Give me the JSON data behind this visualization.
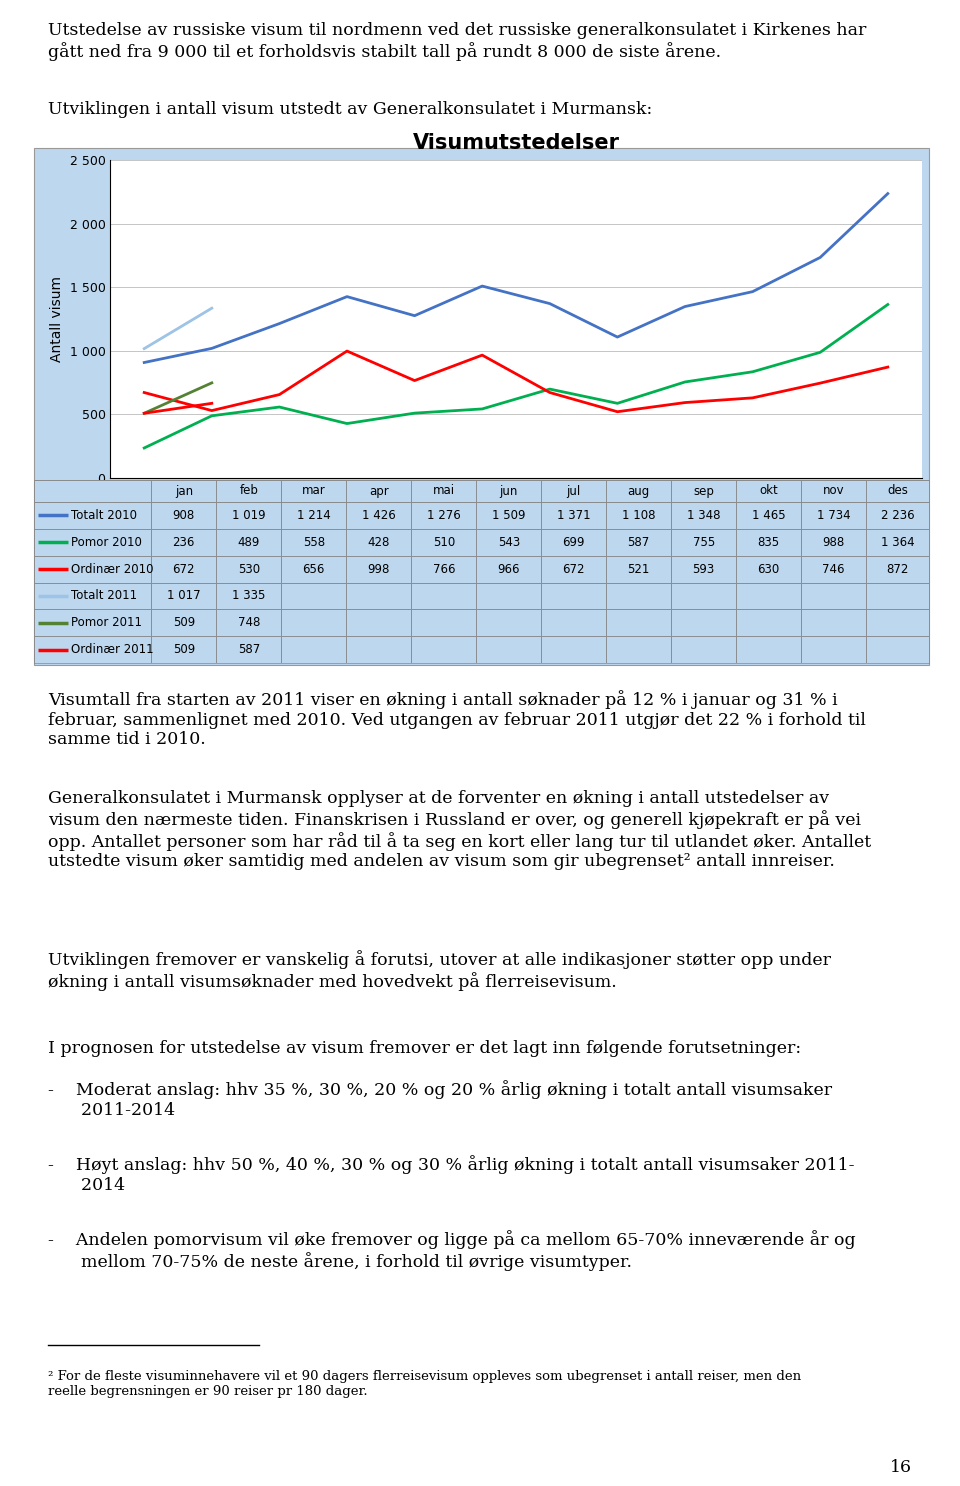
{
  "title": "Visumutstedelser",
  "ylabel": "Antall visum",
  "months": [
    "jan",
    "feb",
    "mar",
    "apr",
    "mai",
    "jun",
    "jul",
    "aug",
    "sep",
    "okt",
    "nov",
    "des"
  ],
  "series_order": [
    "Totalt 2010",
    "Pomor 2010",
    "Ordinær 2010",
    "Totalt 2011",
    "Pomor 2011",
    "Ordinær 2011"
  ],
  "series": {
    "Totalt 2010": {
      "data": [
        908,
        1019,
        1214,
        1426,
        1276,
        1509,
        1371,
        1108,
        1348,
        1465,
        1734,
        2236
      ],
      "color": "#4472C4",
      "linewidth": 2.0,
      "dashes": false
    },
    "Pomor 2010": {
      "data": [
        236,
        489,
        558,
        428,
        510,
        543,
        699,
        587,
        755,
        835,
        988,
        1364
      ],
      "color": "#00B050",
      "linewidth": 2.0,
      "dashes": false
    },
    "Ordinær 2010": {
      "data": [
        672,
        530,
        656,
        998,
        766,
        966,
        672,
        521,
        593,
        630,
        746,
        872
      ],
      "color": "#FF0000",
      "linewidth": 2.0,
      "dashes": false
    },
    "Totalt 2011": {
      "data": [
        1017,
        1335,
        null,
        null,
        null,
        null,
        null,
        null,
        null,
        null,
        null,
        null
      ],
      "color": "#9DC3E6",
      "linewidth": 2.0,
      "dashes": false
    },
    "Pomor 2011": {
      "data": [
        509,
        748,
        null,
        null,
        null,
        null,
        null,
        null,
        null,
        null,
        null,
        null
      ],
      "color": "#548235",
      "linewidth": 2.0,
      "dashes": false
    },
    "Ordinær 2011": {
      "data": [
        509,
        587,
        null,
        null,
        null,
        null,
        null,
        null,
        null,
        null,
        null,
        null
      ],
      "color": "#FF0000",
      "linewidth": 2.0,
      "dashes": false
    }
  },
  "ylim": [
    0,
    2500
  ],
  "yticks": [
    0,
    500,
    1000,
    1500,
    2000,
    2500
  ],
  "chart_bg": "#BDD7EE",
  "plot_bg": "#FFFFFF",
  "table_rows": [
    [
      "Totalt 2010",
      "908",
      "1 019",
      "1 214",
      "1 426",
      "1 276",
      "1 509",
      "1 371",
      "1 108",
      "1 348",
      "1 465",
      "1 734",
      "2 236"
    ],
    [
      "Pomor 2010",
      "236",
      "489",
      "558",
      "428",
      "510",
      "543",
      "699",
      "587",
      "755",
      "835",
      "988",
      "1 364"
    ],
    [
      "Ordinær 2010",
      "672",
      "530",
      "656",
      "998",
      "766",
      "966",
      "672",
      "521",
      "593",
      "630",
      "746",
      "872"
    ],
    [
      "Totalt 2011",
      "1 017",
      "1 335",
      "",
      "",
      "",
      "",
      "",
      "",
      "",
      "",
      "",
      ""
    ],
    [
      "Pomor 2011",
      "509",
      "748",
      "",
      "",
      "",
      "",
      "",
      "",
      "",
      "",
      "",
      ""
    ],
    [
      "Ordinær 2011",
      "509",
      "587",
      "",
      "",
      "",
      "",
      "",
      "",
      "",
      "",
      "",
      ""
    ]
  ],
  "legend_colors": [
    "#4472C4",
    "#00B050",
    "#FF0000",
    "#9DC3E6",
    "#548235",
    "#FF0000"
  ],
  "legend_dashes": [
    false,
    false,
    false,
    false,
    false,
    false
  ],
  "text_para1": "Utstedelse av russiske visum til nordmenn ved det russiske generalkonsulatet i Kirkenes har\ngått ned fra 9 000 til et forholdsvis stabilt tall på rundt 8 000 de siste årene.",
  "text_para2": "Utviklingen i antall visum utstedt av Generalkonsulatet i Murmansk:",
  "text_para3": "Visumtall fra starten av 2011 viser en økning i antall søknader på 12 % i januar og 31 % i\nfebruar, sammenlignet med 2010. Ved utgangen av februar 2011 utgjør det 22 % i forhold til\nsamme tid i 2010.",
  "text_para4": "Generalkonsulatet i Murmansk opplyser at de forventer en økning i antall utstedelser av\nvisum den nærmeste tiden. Finanskrisen i Russland er over, og generell kjøpekraft er på vei\nopp. Antallet personer som har råd til å ta seg en kort eller lang tur til utlandet øker. Antallet\nutstedte visum øker samtidig med andelen av visum som gir ubegrenset² antall innreiser.",
  "text_para5": "Utviklingen fremover er vanskelig å forutsi, utover at alle indikasjoner støtter opp under\nøkning i antall visumsøknader med hovedvekt på flerreisevisum.",
  "text_para6": "I prognosen for utstedelse av visum fremover er det lagt inn følgende forutsetninger:",
  "bullet1": "-    Moderat anslag: hhv 35 %, 30 %, 20 % og 20 % årlig økning i totalt antall visumsaker\n      2011-2014",
  "bullet2": "-    Høyt anslag: hhv 50 %, 40 %, 30 % og 30 % årlig økning i totalt antall visumsaker 2011-\n      2014",
  "bullet3": "-    Andelen pomorvisum vil øke fremover og ligge på ca mellom 65-70% inneværende år og\n      mellom 70-75% de neste årene, i forhold til øvrige visumtyper.",
  "footnote": "² For de fleste visuminnehavere vil et 90 dagers flerreisevisum oppleves som ubegrenset i antall reiser, men den\nreelle begrensningen er 90 reiser pr 180 dager.",
  "page_number": "16"
}
